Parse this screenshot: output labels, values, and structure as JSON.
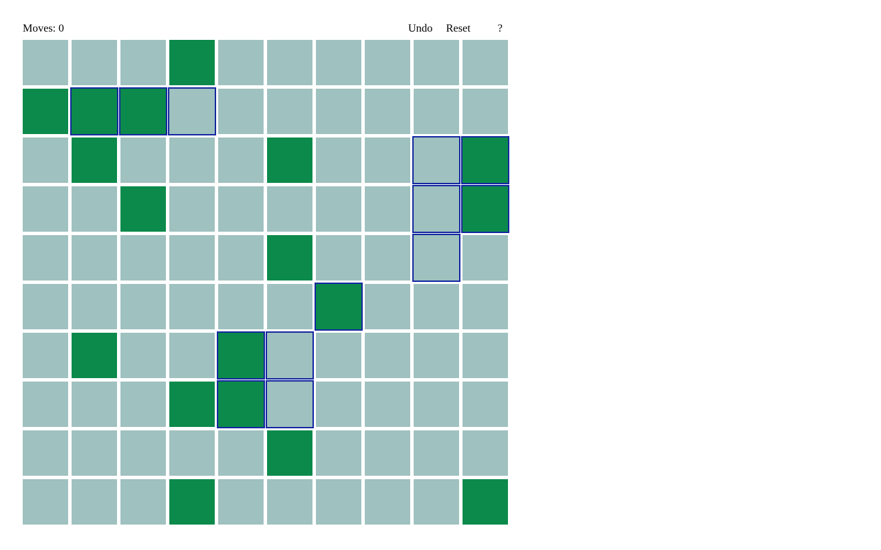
{
  "header": {
    "moves_label": "Moves: 0",
    "undo_label": "Undo",
    "reset_label": "Reset",
    "help_label": "?"
  },
  "colors": {
    "cell_off": "#9fc1bf",
    "cell_on": "#0c8a4b",
    "highlight_border": "#1428a0"
  },
  "board": {
    "rows": 10,
    "cols": 10,
    "cells": [
      "0001000000",
      "1110000000",
      "0100010001",
      "0010000001",
      "0000010000",
      "0000001000",
      "0100100000",
      "0001100000",
      "0000010000",
      "0001000001"
    ],
    "highlighted": [
      "0000000000",
      "0111000000",
      "0000000011",
      "0000000011",
      "0000000010",
      "0000001000",
      "0000110000",
      "0000110000",
      "0000000000",
      "0000000000"
    ]
  }
}
